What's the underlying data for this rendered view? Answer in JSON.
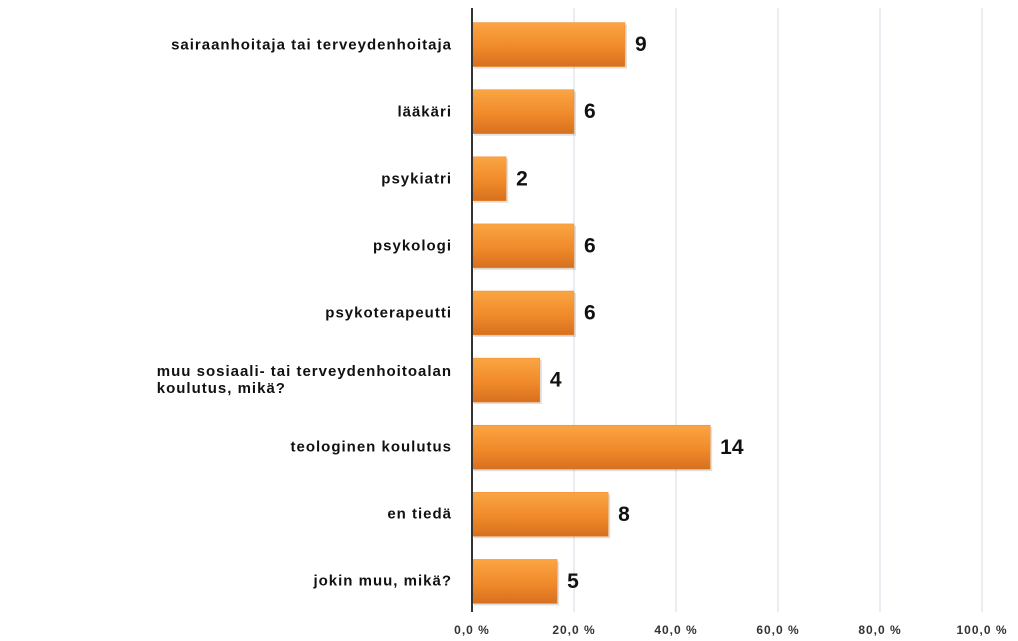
{
  "chart_data": {
    "type": "barh",
    "categories": [
      "sairaanhoitaja tai terveydenhoitaja",
      "lääkäri",
      "psykiatri",
      "psykologi",
      "psykoterapeutti",
      "muu sosiaali- tai terveydenhoitoalan\nkoulutus, mikä?",
      "teologinen koulutus",
      "en tiedä",
      "jokin muu, mikä?"
    ],
    "values": [
      30,
      20,
      6.7,
      20,
      20,
      13.3,
      46.7,
      26.7,
      16.7
    ],
    "counts": [
      9,
      6,
      2,
      6,
      6,
      4,
      14,
      8,
      5
    ],
    "color": "#f08a2a",
    "xlim": [
      0,
      100
    ],
    "xticks": [
      {
        "value": 0,
        "label": "0,0 %"
      },
      {
        "value": 20,
        "label": "20,0 %"
      },
      {
        "value": 40,
        "label": "40,0 %"
      },
      {
        "value": 60,
        "label": "60,0 %"
      },
      {
        "value": 80,
        "label": "80,0 %"
      },
      {
        "value": 100,
        "label": "100,0 %"
      }
    ],
    "grid": true
  }
}
